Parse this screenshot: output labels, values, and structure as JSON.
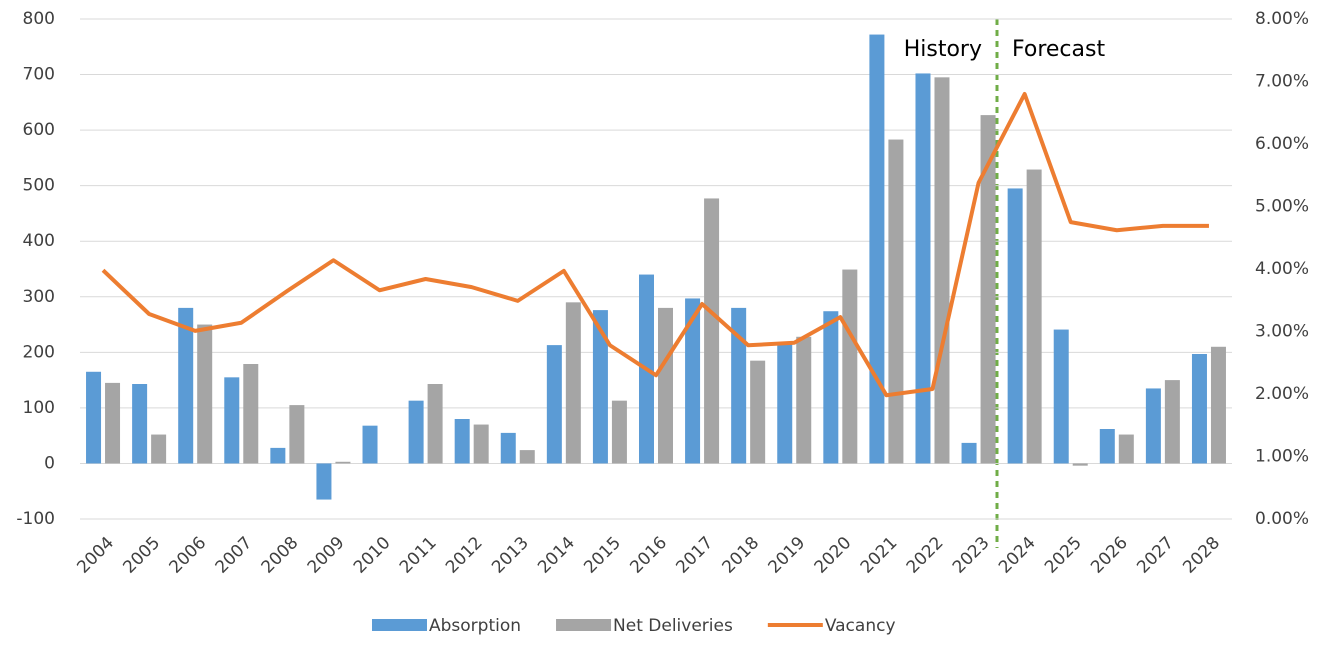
{
  "chart_data": {
    "type": "bar",
    "categories": [
      "2004",
      "2005",
      "2006",
      "2007",
      "2008",
      "2009",
      "2010",
      "2011",
      "2012",
      "2013",
      "2014",
      "2015",
      "2016",
      "2017",
      "2018",
      "2019",
      "2020",
      "2021",
      "2022",
      "2023",
      "2024",
      "2025",
      "2026",
      "2027",
      "2028"
    ],
    "series": [
      {
        "name": "Absorption",
        "color": "#5b9bd5",
        "values": [
          165,
          143,
          280,
          155,
          28,
          -65,
          68,
          113,
          80,
          55,
          213,
          276,
          340,
          297,
          280,
          215,
          274,
          772,
          702,
          37,
          495,
          241,
          62,
          135,
          197
        ]
      },
      {
        "name": "Net Deliveries",
        "color": "#a5a5a5",
        "values": [
          145,
          52,
          250,
          179,
          105,
          3,
          0,
          143,
          70,
          24,
          290,
          113,
          280,
          477,
          185,
          228,
          349,
          583,
          695,
          627,
          529,
          -4,
          52,
          150,
          210
        ]
      },
      {
        "name": "Vacancy",
        "color": "#ed7d31",
        "type": "line",
        "axis": "y2",
        "values": [
          3.98,
          3.28,
          3.01,
          3.14,
          3.65,
          4.14,
          3.66,
          3.84,
          3.71,
          3.49,
          3.97,
          2.78,
          2.3,
          3.44,
          2.78,
          2.82,
          3.23,
          1.98,
          2.08,
          5.38,
          6.8,
          4.75,
          4.62,
          4.69,
          4.69
        ]
      }
    ],
    "ylim": [
      -100,
      800
    ],
    "yticks": [
      -100,
      0,
      100,
      200,
      300,
      400,
      500,
      600,
      700,
      800
    ],
    "y2lim": [
      0,
      8
    ],
    "y2ticks": [
      {
        "value": 0,
        "label": "0.00%"
      },
      {
        "value": 1,
        "label": "1.00%"
      },
      {
        "value": 2,
        "label": "2.00%"
      },
      {
        "value": 3,
        "label": "3.00%"
      },
      {
        "value": 4,
        "label": "4.00%"
      },
      {
        "value": 5,
        "label": "5.00%"
      },
      {
        "value": 6,
        "label": "6.00%"
      },
      {
        "value": 7,
        "label": "7.00%"
      },
      {
        "value": 8,
        "label": "8.00%"
      }
    ],
    "annotations": [
      "History",
      "Forecast"
    ],
    "grid": true,
    "legend": "bottom"
  }
}
